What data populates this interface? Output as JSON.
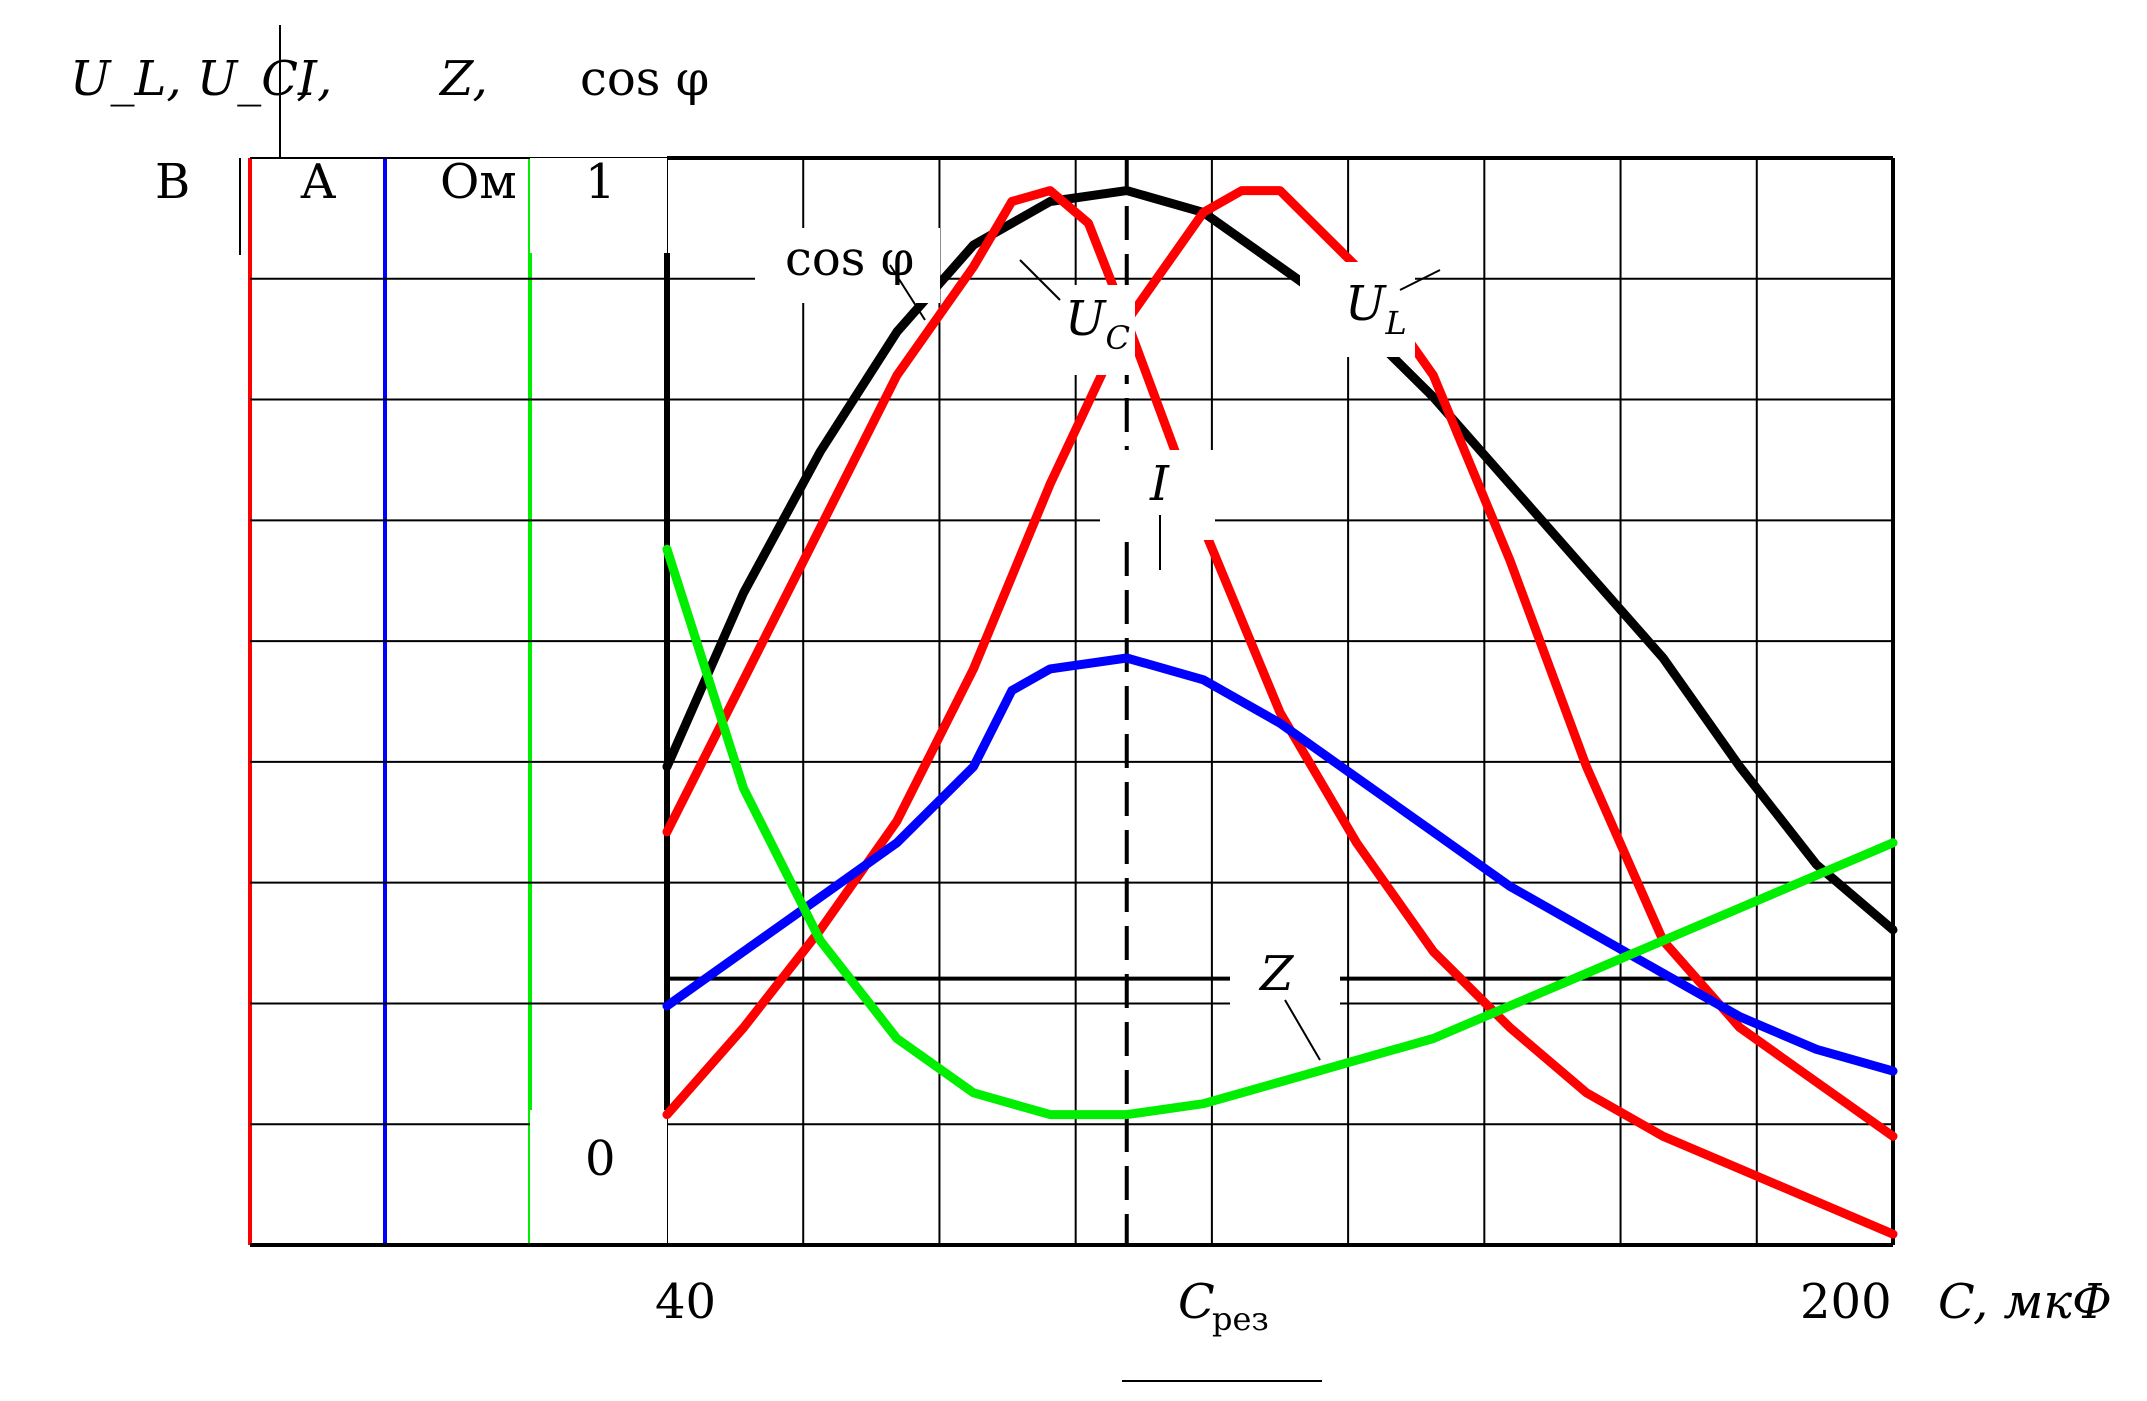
{
  "chart_data": {
    "type": "line",
    "title": "",
    "xlabel": "C, мкФ",
    "x_ticks": [
      "40",
      "C_рез",
      "200"
    ],
    "xlim": [
      40,
      200
    ],
    "resonance_label": "C",
    "resonance_subscript": "рез",
    "y_axes": [
      {
        "quantity": "U_L, U_C,",
        "unit": "В",
        "color": "#ff0000"
      },
      {
        "quantity": "I,",
        "unit": "А",
        "color": "#0000ff"
      },
      {
        "quantity": "Z,",
        "unit": "Ом",
        "color": "#00ee00"
      },
      {
        "quantity": "cos φ",
        "unit": "",
        "color": "#000000",
        "tick_top": "1",
        "tick_bottom": "0"
      }
    ],
    "series": [
      {
        "name": "cos φ",
        "color": "#000000",
        "points": [
          [
            40,
            0.44
          ],
          [
            50,
            0.6
          ],
          [
            60,
            0.73
          ],
          [
            70,
            0.84
          ],
          [
            80,
            0.92
          ],
          [
            90,
            0.96
          ],
          [
            100,
            0.97
          ],
          [
            110,
            0.95
          ],
          [
            120,
            0.9
          ],
          [
            130,
            0.85
          ],
          [
            140,
            0.78
          ],
          [
            150,
            0.7
          ],
          [
            160,
            0.62
          ],
          [
            170,
            0.54
          ],
          [
            180,
            0.44
          ],
          [
            190,
            0.35
          ],
          [
            200,
            0.29
          ]
        ]
      },
      {
        "name": "U_C",
        "color": "#ff0000",
        "points": [
          [
            40,
            0.38
          ],
          [
            50,
            0.52
          ],
          [
            60,
            0.66
          ],
          [
            70,
            0.8
          ],
          [
            80,
            0.9
          ],
          [
            85,
            0.96
          ],
          [
            90,
            0.97
          ],
          [
            95,
            0.94
          ],
          [
            100,
            0.85
          ],
          [
            110,
            0.66
          ],
          [
            120,
            0.49
          ],
          [
            130,
            0.37
          ],
          [
            140,
            0.27
          ],
          [
            150,
            0.2
          ],
          [
            160,
            0.14
          ],
          [
            170,
            0.1
          ],
          [
            180,
            0.07
          ],
          [
            190,
            0.04
          ],
          [
            200,
            0.01
          ]
        ]
      },
      {
        "name": "U_L",
        "color": "#ff0000",
        "points": [
          [
            40,
            0.12
          ],
          [
            50,
            0.2
          ],
          [
            60,
            0.29
          ],
          [
            70,
            0.39
          ],
          [
            80,
            0.53
          ],
          [
            90,
            0.7
          ],
          [
            100,
            0.85
          ],
          [
            110,
            0.95
          ],
          [
            115,
            0.97
          ],
          [
            120,
            0.97
          ],
          [
            130,
            0.9
          ],
          [
            140,
            0.8
          ],
          [
            150,
            0.63
          ],
          [
            160,
            0.44
          ],
          [
            170,
            0.28
          ],
          [
            180,
            0.2
          ],
          [
            190,
            0.15
          ],
          [
            200,
            0.1
          ]
        ]
      },
      {
        "name": "I",
        "color": "#0000ff",
        "points": [
          [
            40,
            0.22
          ],
          [
            50,
            0.27
          ],
          [
            60,
            0.32
          ],
          [
            70,
            0.37
          ],
          [
            80,
            0.44
          ],
          [
            85,
            0.51
          ],
          [
            90,
            0.53
          ],
          [
            100,
            0.54
          ],
          [
            110,
            0.52
          ],
          [
            120,
            0.48
          ],
          [
            130,
            0.43
          ],
          [
            140,
            0.38
          ],
          [
            150,
            0.33
          ],
          [
            160,
            0.29
          ],
          [
            170,
            0.25
          ],
          [
            180,
            0.21
          ],
          [
            190,
            0.18
          ],
          [
            200,
            0.16
          ]
        ]
      },
      {
        "name": "Z",
        "color": "#00ee00",
        "points": [
          [
            40,
            0.64
          ],
          [
            50,
            0.42
          ],
          [
            60,
            0.28
          ],
          [
            70,
            0.19
          ],
          [
            80,
            0.14
          ],
          [
            90,
            0.12
          ],
          [
            100,
            0.12
          ],
          [
            110,
            0.13
          ],
          [
            120,
            0.15
          ],
          [
            130,
            0.17
          ],
          [
            140,
            0.19
          ],
          [
            150,
            0.22
          ],
          [
            160,
            0.25
          ],
          [
            170,
            0.28
          ],
          [
            180,
            0.31
          ],
          [
            190,
            0.34
          ],
          [
            200,
            0.37
          ]
        ]
      }
    ],
    "annotations": [
      {
        "text": "cos φ",
        "target": "cos φ"
      },
      {
        "text": "U_C",
        "target": "U_C"
      },
      {
        "text": "U_L",
        "target": "U_L"
      },
      {
        "text": "I",
        "target": "I"
      },
      {
        "text": "Z",
        "target": "Z"
      }
    ],
    "grid": true,
    "legend": "none"
  }
}
